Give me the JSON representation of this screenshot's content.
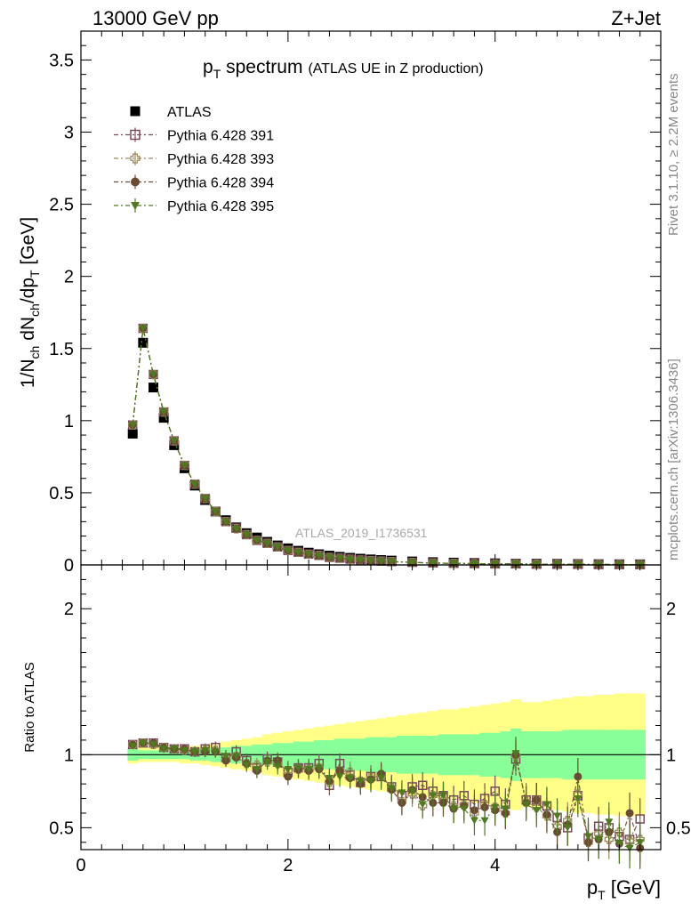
{
  "header": {
    "left": "13000 GeV pp",
    "right": "Z+Jet"
  },
  "title": {
    "main": "p",
    "main_sub": "T",
    "main_rest": " spectrum",
    "extra": "(ATLAS UE in Z production)"
  },
  "side_labels": {
    "rivet": "Rivet 3.1.10, ≥ 2.2M events",
    "mcplots": "mcplots.cern.ch [arXiv:1306.3436]"
  },
  "watermark": "ATLAS_2019_I1736531",
  "axes": {
    "top_ylabel": "1/N_ch dN_ch/dp_T [GeV]",
    "bottom_ylabel": "Ratio to ATLAS",
    "xlabel": "p_T [GeV]",
    "top_yticks": [
      "0",
      "0.5",
      "1",
      "1.5",
      "2",
      "2.5",
      "3",
      "3.5"
    ],
    "bottom_yticks": [
      "0.5",
      "1",
      "2"
    ],
    "xticks": [
      "0",
      "2",
      "4"
    ]
  },
  "legend": {
    "entries": [
      {
        "label": "ATLAS",
        "color": "#000000",
        "marker": "filled-square"
      },
      {
        "label": "Pythia 6.428 391",
        "color": "#7a4a5e",
        "marker": "open-square"
      },
      {
        "label": "Pythia 6.428 393",
        "color": "#9c8a5c",
        "marker": "open-cross"
      },
      {
        "label": "Pythia 6.428 394",
        "color": "#6b4a33",
        "marker": "filled-circle"
      },
      {
        "label": "Pythia 6.428 395",
        "color": "#4f7a1f",
        "marker": "filled-triangle-down"
      }
    ]
  },
  "chart_data": {
    "type": "scatter",
    "top_panel": {
      "xlim": [
        0,
        5.6
      ],
      "ylim": [
        0,
        3.7
      ],
      "x": [
        0.5,
        0.6,
        0.7,
        0.8,
        0.9,
        1.0,
        1.1,
        1.2,
        1.3,
        1.4,
        1.5,
        1.6,
        1.7,
        1.8,
        1.9,
        2.0,
        2.1,
        2.2,
        2.3,
        2.4,
        2.5,
        2.6,
        2.7,
        2.8,
        2.9,
        3.0,
        3.2,
        3.4,
        3.6,
        3.8,
        4.0,
        4.2,
        4.4,
        4.6,
        4.8,
        5.0,
        5.2,
        5.4
      ],
      "series": [
        {
          "name": "ATLAS",
          "values": [
            0.91,
            1.54,
            1.23,
            1.02,
            0.83,
            0.67,
            0.55,
            0.45,
            0.37,
            0.31,
            0.26,
            0.22,
            0.19,
            0.16,
            0.135,
            0.115,
            0.098,
            0.085,
            0.074,
            0.064,
            0.056,
            0.049,
            0.043,
            0.038,
            0.034,
            0.03,
            0.024,
            0.019,
            0.016,
            0.013,
            0.011,
            0.009,
            0.008,
            0.007,
            0.006,
            0.005,
            0.0045,
            0.004
          ]
        },
        {
          "name": "Pythia 6.428 391",
          "values": [
            0.97,
            1.64,
            1.32,
            1.06,
            0.86,
            0.69,
            0.56,
            0.46,
            0.37,
            0.3,
            0.255,
            0.21,
            0.17,
            0.15,
            0.125,
            0.1,
            0.088,
            0.075,
            0.066,
            0.052,
            0.047,
            0.04,
            0.034,
            0.03,
            0.027,
            0.023,
            0.018,
            0.014,
            0.011,
            0.009,
            0.007,
            0.008,
            0.005,
            0.004,
            0.004,
            0.003,
            0.003,
            0.002
          ]
        },
        {
          "name": "Pythia 6.428 393",
          "values": [
            0.97,
            1.64,
            1.32,
            1.06,
            0.86,
            0.69,
            0.56,
            0.46,
            0.37,
            0.3,
            0.25,
            0.21,
            0.17,
            0.15,
            0.125,
            0.1,
            0.087,
            0.075,
            0.065,
            0.052,
            0.046,
            0.039,
            0.034,
            0.03,
            0.026,
            0.023,
            0.017,
            0.013,
            0.011,
            0.009,
            0.007,
            0.008,
            0.005,
            0.004,
            0.004,
            0.003,
            0.003,
            0.002
          ]
        },
        {
          "name": "Pythia 6.428 394",
          "values": [
            0.97,
            1.64,
            1.32,
            1.06,
            0.86,
            0.69,
            0.56,
            0.46,
            0.37,
            0.3,
            0.25,
            0.21,
            0.17,
            0.15,
            0.125,
            0.1,
            0.087,
            0.075,
            0.064,
            0.052,
            0.046,
            0.039,
            0.034,
            0.03,
            0.026,
            0.023,
            0.017,
            0.013,
            0.011,
            0.009,
            0.007,
            0.008,
            0.005,
            0.004,
            0.004,
            0.003,
            0.003,
            0.002
          ]
        },
        {
          "name": "Pythia 6.428 395",
          "values": [
            0.97,
            1.64,
            1.32,
            1.06,
            0.86,
            0.69,
            0.56,
            0.46,
            0.37,
            0.3,
            0.25,
            0.21,
            0.17,
            0.15,
            0.125,
            0.1,
            0.087,
            0.075,
            0.064,
            0.052,
            0.046,
            0.039,
            0.034,
            0.03,
            0.026,
            0.023,
            0.017,
            0.013,
            0.011,
            0.009,
            0.007,
            0.008,
            0.005,
            0.004,
            0.004,
            0.003,
            0.003,
            0.002
          ]
        }
      ]
    },
    "ratio_panel": {
      "xlim": [
        0,
        5.6
      ],
      "ylim": [
        0.35,
        2.3
      ],
      "x": [
        0.5,
        0.6,
        0.7,
        0.8,
        0.9,
        1.0,
        1.1,
        1.2,
        1.3,
        1.4,
        1.5,
        1.6,
        1.7,
        1.8,
        1.9,
        2.0,
        2.1,
        2.2,
        2.3,
        2.4,
        2.5,
        2.6,
        2.7,
        2.8,
        2.9,
        3.0,
        3.1,
        3.2,
        3.3,
        3.4,
        3.5,
        3.6,
        3.7,
        3.8,
        3.9,
        4.0,
        4.1,
        4.2,
        4.3,
        4.4,
        4.5,
        4.6,
        4.7,
        4.8,
        4.9,
        5.0,
        5.1,
        5.2,
        5.3,
        5.4
      ],
      "band_outer_half_width": [
        0.06,
        0.05,
        0.05,
        0.05,
        0.05,
        0.06,
        0.06,
        0.07,
        0.08,
        0.09,
        0.1,
        0.11,
        0.12,
        0.14,
        0.15,
        0.16,
        0.17,
        0.18,
        0.19,
        0.2,
        0.21,
        0.22,
        0.23,
        0.24,
        0.25,
        0.26,
        0.27,
        0.28,
        0.29,
        0.3,
        0.31,
        0.31,
        0.32,
        0.33,
        0.34,
        0.35,
        0.36,
        0.38,
        0.36,
        0.36,
        0.37,
        0.38,
        0.39,
        0.4,
        0.4,
        0.41,
        0.41,
        0.42,
        0.42,
        0.42
      ],
      "band_inner_half_width": [
        0.04,
        0.03,
        0.03,
        0.03,
        0.03,
        0.03,
        0.04,
        0.04,
        0.05,
        0.05,
        0.06,
        0.06,
        0.07,
        0.07,
        0.08,
        0.08,
        0.09,
        0.09,
        0.1,
        0.1,
        0.11,
        0.11,
        0.11,
        0.12,
        0.12,
        0.12,
        0.13,
        0.13,
        0.13,
        0.13,
        0.14,
        0.14,
        0.14,
        0.14,
        0.15,
        0.15,
        0.16,
        0.18,
        0.16,
        0.16,
        0.16,
        0.16,
        0.17,
        0.17,
        0.17,
        0.17,
        0.17,
        0.17,
        0.17,
        0.17
      ],
      "series": [
        {
          "name": "Pythia 6.428 391",
          "values": [
            1.07,
            1.08,
            1.08,
            1.05,
            1.04,
            1.04,
            1.02,
            1.04,
            1.05,
            0.98,
            1.02,
            0.96,
            0.91,
            0.97,
            0.95,
            0.88,
            0.91,
            0.91,
            0.94,
            0.79,
            0.94,
            0.86,
            0.81,
            0.85,
            0.85,
            0.78,
            0.72,
            0.78,
            0.79,
            0.75,
            0.72,
            0.69,
            0.72,
            0.66,
            0.7,
            0.75,
            0.66,
            0.97,
            0.69,
            0.69,
            0.65,
            0.57,
            0.5,
            0.72,
            0.43,
            0.51,
            0.5,
            0.44,
            0.42,
            0.56
          ]
        },
        {
          "name": "Pythia 6.428 393",
          "values": [
            1.07,
            1.08,
            1.07,
            1.05,
            1.04,
            1.03,
            1.02,
            1.03,
            1.03,
            0.97,
            0.99,
            0.94,
            0.93,
            0.95,
            0.94,
            0.89,
            0.9,
            0.9,
            0.91,
            0.81,
            0.89,
            0.88,
            0.82,
            0.84,
            0.86,
            0.77,
            0.68,
            0.73,
            0.65,
            0.72,
            0.69,
            0.65,
            0.66,
            0.6,
            0.66,
            0.64,
            0.6,
            0.99,
            0.68,
            0.64,
            0.58,
            0.51,
            0.55,
            0.73,
            0.4,
            0.46,
            0.42,
            0.47,
            0.41,
            0.42
          ]
        },
        {
          "name": "Pythia 6.428 394",
          "values": [
            1.07,
            1.08,
            1.08,
            1.05,
            1.04,
            1.04,
            1.02,
            1.02,
            1.02,
            0.96,
            0.98,
            0.94,
            0.89,
            0.96,
            0.96,
            0.85,
            0.9,
            0.89,
            0.9,
            0.82,
            0.89,
            0.84,
            0.8,
            0.83,
            0.87,
            0.76,
            0.67,
            0.76,
            0.71,
            0.67,
            0.67,
            0.63,
            0.65,
            0.62,
            0.64,
            0.62,
            0.6,
            1.0,
            0.67,
            0.69,
            0.59,
            0.47,
            0.52,
            0.85,
            0.4,
            0.42,
            0.47,
            0.39,
            0.6,
            0.36
          ]
        },
        {
          "name": "Pythia 6.428 395",
          "values": [
            1.06,
            1.08,
            1.07,
            1.04,
            1.04,
            1.03,
            1.02,
            1.03,
            1.02,
            0.99,
            0.99,
            0.93,
            0.9,
            0.95,
            0.92,
            0.9,
            0.91,
            0.9,
            0.91,
            0.84,
            0.85,
            0.84,
            0.82,
            0.82,
            0.84,
            0.77,
            0.74,
            0.75,
            0.66,
            0.72,
            0.72,
            0.63,
            0.63,
            0.55,
            0.55,
            0.64,
            0.63,
            1.01,
            0.66,
            0.62,
            0.66,
            0.58,
            0.5,
            0.7,
            0.44,
            0.42,
            0.54,
            0.39,
            0.36,
            0.4
          ]
        }
      ]
    }
  }
}
